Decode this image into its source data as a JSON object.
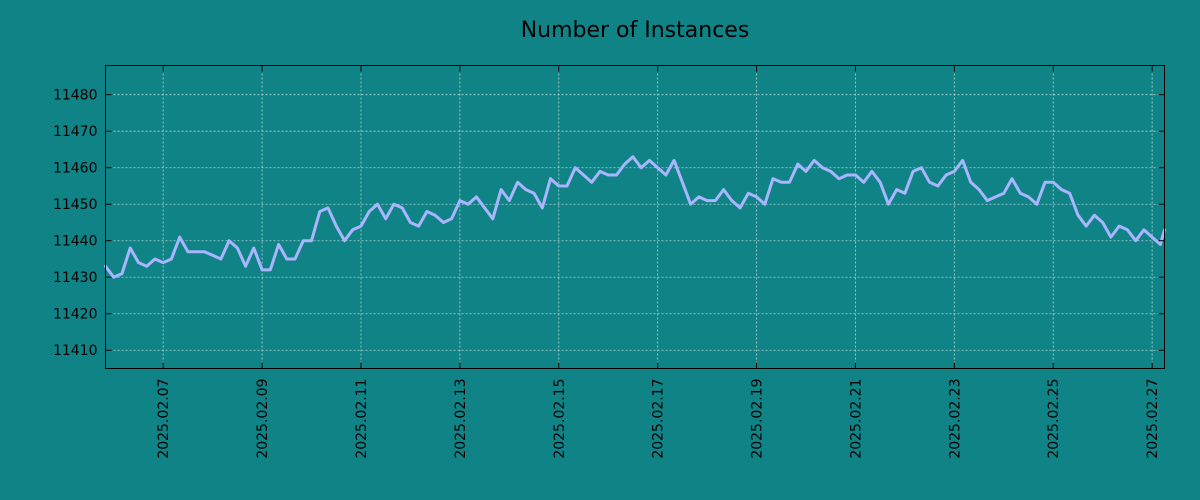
{
  "chart_data": {
    "type": "line",
    "title": "Number of Instances",
    "xlabel": "",
    "ylabel": "",
    "grid": true,
    "legend": "none",
    "x_tick_labels": [
      "2025.02.07",
      "2025.02.09",
      "2025.02.11",
      "2025.02.13",
      "2025.02.15",
      "2025.02.17",
      "2025.02.19",
      "2025.02.21",
      "2025.02.23",
      "2025.02.25",
      "2025.02.27"
    ],
    "y_tick_labels": [
      "11410",
      "11420",
      "11430",
      "11440",
      "11450",
      "11460",
      "11470",
      "11480"
    ],
    "xlim": [
      "2025-02-05 20:00",
      "2025-02-27 06:00"
    ],
    "ylim": [
      11405,
      11488
    ],
    "series": [
      {
        "color": "#a9b5ff",
        "x": [
          "2025-02-05 20:00",
          "2025-02-06 00:00",
          "2025-02-06 04:00",
          "2025-02-06 08:00",
          "2025-02-06 12:00",
          "2025-02-06 16:00",
          "2025-02-06 20:00",
          "2025-02-07 00:00",
          "2025-02-07 04:00",
          "2025-02-07 08:00",
          "2025-02-07 12:00",
          "2025-02-07 16:00",
          "2025-02-07 20:00",
          "2025-02-08 00:00",
          "2025-02-08 04:00",
          "2025-02-08 08:00",
          "2025-02-08 12:00",
          "2025-02-08 16:00",
          "2025-02-08 20:00",
          "2025-02-09 00:00",
          "2025-02-09 04:00",
          "2025-02-09 08:00",
          "2025-02-09 12:00",
          "2025-02-09 16:00",
          "2025-02-09 20:00",
          "2025-02-10 00:00",
          "2025-02-10 04:00",
          "2025-02-10 08:00",
          "2025-02-10 12:00",
          "2025-02-10 16:00",
          "2025-02-10 20:00",
          "2025-02-11 00:00",
          "2025-02-11 04:00",
          "2025-02-11 08:00",
          "2025-02-11 12:00",
          "2025-02-11 16:00",
          "2025-02-11 20:00",
          "2025-02-12 00:00",
          "2025-02-12 04:00",
          "2025-02-12 08:00",
          "2025-02-12 12:00",
          "2025-02-12 16:00",
          "2025-02-12 20:00",
          "2025-02-13 00:00",
          "2025-02-13 04:00",
          "2025-02-13 08:00",
          "2025-02-13 12:00",
          "2025-02-13 16:00",
          "2025-02-13 20:00",
          "2025-02-14 00:00",
          "2025-02-14 04:00",
          "2025-02-14 08:00",
          "2025-02-14 12:00",
          "2025-02-14 16:00",
          "2025-02-14 20:00",
          "2025-02-15 00:00",
          "2025-02-15 04:00",
          "2025-02-15 08:00",
          "2025-02-15 12:00",
          "2025-02-15 16:00",
          "2025-02-15 20:00",
          "2025-02-16 00:00",
          "2025-02-16 04:00",
          "2025-02-16 08:00",
          "2025-02-16 12:00",
          "2025-02-16 16:00",
          "2025-02-16 20:00",
          "2025-02-17 00:00",
          "2025-02-17 04:00",
          "2025-02-17 08:00",
          "2025-02-17 12:00",
          "2025-02-17 16:00",
          "2025-02-17 20:00",
          "2025-02-18 00:00",
          "2025-02-18 04:00",
          "2025-02-18 08:00",
          "2025-02-18 12:00",
          "2025-02-18 16:00",
          "2025-02-18 20:00",
          "2025-02-19 00:00",
          "2025-02-19 04:00",
          "2025-02-19 08:00",
          "2025-02-19 12:00",
          "2025-02-19 16:00",
          "2025-02-19 20:00",
          "2025-02-20 00:00",
          "2025-02-20 04:00",
          "2025-02-20 08:00",
          "2025-02-20 12:00",
          "2025-02-20 16:00",
          "2025-02-20 20:00",
          "2025-02-21 00:00",
          "2025-02-21 04:00",
          "2025-02-21 08:00",
          "2025-02-21 12:00",
          "2025-02-21 16:00",
          "2025-02-21 20:00",
          "2025-02-22 00:00",
          "2025-02-22 04:00",
          "2025-02-22 08:00",
          "2025-02-22 12:00",
          "2025-02-22 16:00",
          "2025-02-22 20:00",
          "2025-02-23 00:00",
          "2025-02-23 04:00",
          "2025-02-23 08:00",
          "2025-02-23 12:00",
          "2025-02-23 16:00",
          "2025-02-23 20:00",
          "2025-02-24 00:00",
          "2025-02-24 04:00",
          "2025-02-24 08:00",
          "2025-02-24 12:00",
          "2025-02-24 16:00",
          "2025-02-24 20:00",
          "2025-02-25 00:00",
          "2025-02-25 04:00",
          "2025-02-25 08:00",
          "2025-02-25 12:00",
          "2025-02-25 16:00",
          "2025-02-25 20:00",
          "2025-02-26 00:00",
          "2025-02-26 04:00",
          "2025-02-26 08:00",
          "2025-02-26 12:00",
          "2025-02-26 16:00",
          "2025-02-26 20:00",
          "2025-02-27 00:00",
          "2025-02-27 04:00",
          "2025-02-27 06:00"
        ],
        "y": [
          11433,
          11430,
          11431,
          11438,
          11434,
          11433,
          11435,
          11434,
          11435,
          11441,
          11437,
          11437,
          11437,
          11436,
          11435,
          11440,
          11438,
          11433,
          11438,
          11432,
          11432,
          11439,
          11435,
          11435,
          11440,
          11440,
          11448,
          11449,
          11444,
          11440,
          11443,
          11444,
          11448,
          11450,
          11446,
          11450,
          11449,
          11445,
          11444,
          11448,
          11447,
          11445,
          11446,
          11451,
          11450,
          11452,
          11449,
          11446,
          11454,
          11451,
          11456,
          11454,
          11453,
          11449,
          11457,
          11455,
          11455,
          11460,
          11458,
          11456,
          11459,
          11458,
          11458,
          11461,
          11463,
          11460,
          11462,
          11460,
          11458,
          11462,
          11456,
          11450,
          11452,
          11451,
          11451,
          11454,
          11451,
          11449,
          11453,
          11452,
          11450,
          11457,
          11456,
          11456,
          11461,
          11459,
          11462,
          11460,
          11459,
          11457,
          11458,
          11458,
          11456,
          11459,
          11456,
          11450,
          11454,
          11453,
          11459,
          11460,
          11456,
          11455,
          11458,
          11459,
          11462,
          11456,
          11454,
          11451,
          11452,
          11453,
          11457,
          11453,
          11452,
          11450,
          11456,
          11456,
          11454,
          11453,
          11447,
          11444,
          11447,
          11445,
          11441,
          11444,
          11443,
          11440,
          11443,
          11441,
          11439,
          11443
        ]
      }
    ]
  }
}
